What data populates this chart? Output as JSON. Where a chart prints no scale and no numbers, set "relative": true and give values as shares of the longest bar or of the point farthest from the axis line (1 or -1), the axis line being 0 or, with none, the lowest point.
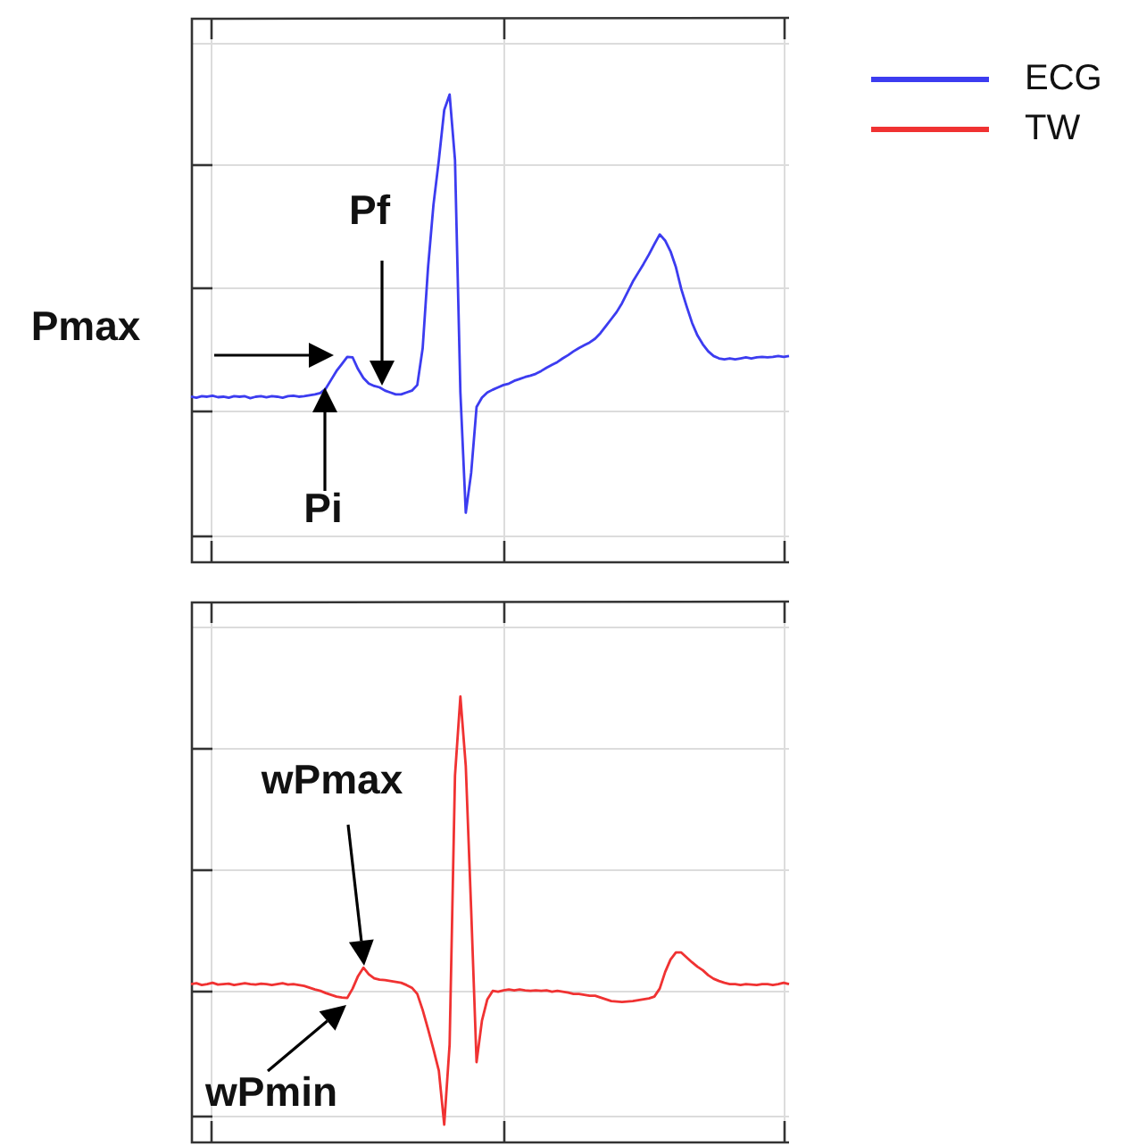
{
  "chart_data": [
    {
      "type": "line",
      "relative": true,
      "grid": true,
      "legend": "top right",
      "categories": [
        null,
        null,
        null,
        null,
        null,
        null,
        null,
        null,
        null,
        null,
        null,
        null,
        null,
        null,
        null,
        null,
        null,
        null,
        null,
        null,
        null,
        null,
        null,
        null,
        null,
        null,
        null,
        null,
        null,
        null,
        null,
        null,
        null,
        null,
        null,
        null,
        null,
        null,
        null,
        null,
        null,
        null,
        null,
        null,
        null,
        null,
        null,
        null,
        null,
        null,
        null,
        null,
        null,
        null,
        null,
        null,
        null,
        null,
        null,
        null,
        null,
        null,
        null,
        null,
        null,
        null,
        null,
        null,
        null,
        null,
        null,
        null,
        null,
        null,
        null,
        null,
        null,
        null,
        null,
        null,
        null,
        null,
        null,
        null,
        null,
        null,
        null,
        null,
        null,
        null,
        null,
        null,
        null,
        null,
        null,
        null,
        null,
        null,
        null,
        null,
        null,
        null,
        null,
        null,
        null,
        null,
        null,
        null,
        null,
        null,
        null,
        null
      ],
      "series": [
        {
          "name": "ECG",
          "color": "#3c3cf0",
          "values": [
            0.354,
            0.352,
            0.355,
            0.354,
            0.356,
            0.353,
            0.354,
            0.352,
            0.355,
            0.354,
            0.355,
            0.351,
            0.354,
            0.355,
            0.353,
            0.355,
            0.354,
            0.352,
            0.355,
            0.356,
            0.354,
            0.355,
            0.357,
            0.359,
            0.362,
            0.371,
            0.39,
            0.409,
            0.424,
            0.439,
            0.438,
            0.413,
            0.394,
            0.382,
            0.377,
            0.374,
            0.367,
            0.363,
            0.359,
            0.359,
            0.363,
            0.367,
            0.379,
            0.458,
            0.631,
            0.764,
            0.86,
            0.967,
            1,
            0.86,
            0.363,
            0.106,
            0.191,
            0.332,
            0.352,
            0.363,
            0.369,
            0.374,
            0.379,
            0.382,
            0.388,
            0.392,
            0.396,
            0.399,
            0.403,
            0.409,
            0.416,
            0.422,
            0.428,
            0.436,
            0.443,
            0.451,
            0.458,
            0.464,
            0.47,
            0.478,
            0.49,
            0.505,
            0.52,
            0.535,
            0.554,
            0.577,
            0.6,
            0.619,
            0.638,
            0.658,
            0.68,
            0.701,
            0.688,
            0.665,
            0.631,
            0.584,
            0.547,
            0.512,
            0.485,
            0.466,
            0.451,
            0.441,
            0.436,
            0.434,
            0.436,
            0.434,
            0.436,
            0.438,
            0.436,
            0.438,
            0.439,
            0.438,
            0.439,
            0.441,
            0.439,
            0.441
          ]
        }
      ],
      "annotations": [
        "Pmax",
        "Pf",
        "Pi"
      ]
    },
    {
      "type": "line",
      "relative": true,
      "grid": true,
      "legend": "top right",
      "categories": [
        null,
        null,
        null,
        null,
        null,
        null,
        null,
        null,
        null,
        null,
        null,
        null,
        null,
        null,
        null,
        null,
        null,
        null,
        null,
        null,
        null,
        null,
        null,
        null,
        null,
        null,
        null,
        null,
        null,
        null,
        null,
        null,
        null,
        null,
        null,
        null,
        null,
        null,
        null,
        null,
        null,
        null,
        null,
        null,
        null,
        null,
        null,
        null,
        null,
        null,
        null,
        null,
        null,
        null,
        null,
        null,
        null,
        null,
        null,
        null,
        null,
        null,
        null,
        null,
        null,
        null,
        null,
        null,
        null,
        null,
        null,
        null,
        null,
        null,
        null,
        null,
        null,
        null,
        null,
        null,
        null,
        null,
        null,
        null,
        null,
        null,
        null,
        null,
        null,
        null,
        null,
        null,
        null,
        null,
        null,
        null,
        null,
        null,
        null,
        null,
        null,
        null,
        null,
        null,
        null,
        null,
        null,
        null,
        null,
        null,
        null,
        null
      ],
      "series": [
        {
          "name": "TW",
          "color": "#f03232",
          "values": [
            0.355,
            0.357,
            0.353,
            0.355,
            0.358,
            0.354,
            0.355,
            0.356,
            0.353,
            0.355,
            0.357,
            0.355,
            0.354,
            0.356,
            0.355,
            0.353,
            0.355,
            0.357,
            0.354,
            0.355,
            0.353,
            0.351,
            0.347,
            0.343,
            0.34,
            0.335,
            0.331,
            0.327,
            0.325,
            0.324,
            0.345,
            0.373,
            0.392,
            0.377,
            0.368,
            0.365,
            0.364,
            0.362,
            0.36,
            0.358,
            0.353,
            0.347,
            0.333,
            0.297,
            0.254,
            0.209,
            0.161,
            0.04,
            0.22,
            0.823,
            1,
            0.844,
            0.522,
            0.18,
            0.273,
            0.321,
            0.34,
            0.338,
            0.341,
            0.343,
            0.341,
            0.343,
            0.341,
            0.34,
            0.341,
            0.34,
            0.341,
            0.338,
            0.34,
            0.338,
            0.336,
            0.333,
            0.333,
            0.331,
            0.329,
            0.329,
            0.325,
            0.321,
            0.317,
            0.316,
            0.315,
            0.316,
            0.317,
            0.319,
            0.321,
            0.323,
            0.327,
            0.345,
            0.382,
            0.41,
            0.426,
            0.426,
            0.415,
            0.404,
            0.394,
            0.386,
            0.375,
            0.367,
            0.362,
            0.358,
            0.355,
            0.355,
            0.353,
            0.355,
            0.354,
            0.353,
            0.355,
            0.355,
            0.353,
            0.355,
            0.358,
            0.355
          ]
        }
      ],
      "annotations": [
        "wPmax",
        "wPmin"
      ]
    }
  ]
}
